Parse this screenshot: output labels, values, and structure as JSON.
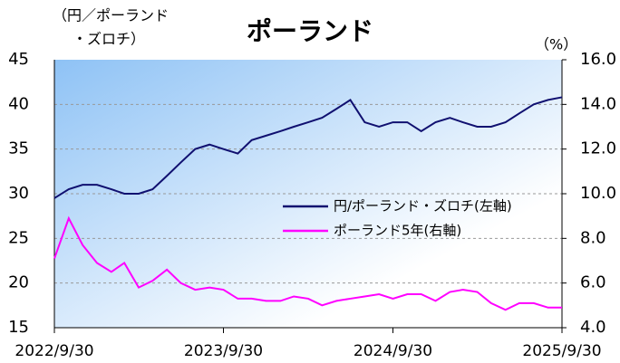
{
  "chart_data": {
    "type": "line",
    "title": "ポーランド",
    "y_label": [
      "（円／ポーランド",
      "・ズロチ）"
    ],
    "y2_label": "（%）",
    "x": [
      "2022/9/30",
      "2022/10/31",
      "2022/11/30",
      "2022/12/31",
      "2023/1/31",
      "2023/2/28",
      "2023/3/31",
      "2023/4/30",
      "2023/5/31",
      "2023/6/30",
      "2023/7/31",
      "2023/8/31",
      "2023/9/30",
      "2023/10/31",
      "2023/11/30",
      "2023/12/31",
      "2024/1/31",
      "2024/2/29",
      "2024/3/31",
      "2024/4/30",
      "2024/5/31",
      "2024/6/30",
      "2024/7/31",
      "2024/8/31",
      "2024/9/30",
      "2024/10/31",
      "2024/11/30",
      "2024/12/31",
      "2025/1/31",
      "2025/2/28",
      "2025/3/31",
      "2025/4/30",
      "2025/5/31",
      "2025/6/30",
      "2025/7/31",
      "2025/8/31",
      "2025/9/30"
    ],
    "series": [
      {
        "name": "円/ポーランド・ズロチ(左軸)",
        "color": "#101070",
        "values": [
          29.5,
          30.5,
          31,
          31,
          30.5,
          30,
          30,
          30.5,
          32,
          33.5,
          35,
          35.5,
          35,
          34.5,
          36,
          36.5,
          37,
          37.5,
          38,
          38.5,
          39.5,
          40.5,
          38,
          37.5,
          38,
          38,
          37,
          38,
          38.5,
          38,
          37.5,
          37.5,
          38,
          39,
          40,
          40.5,
          40.8
        ]
      },
      {
        "name": "ポーランド5年(右軸)",
        "color": "#ff00ff",
        "axis": "y2",
        "values": [
          7.1,
          8.9,
          7.7,
          6.9,
          6.5,
          6.9,
          5.8,
          6.1,
          6.6,
          6.0,
          5.7,
          5.8,
          5.7,
          5.3,
          5.3,
          5.2,
          5.2,
          5.4,
          5.3,
          5.0,
          5.2,
          5.3,
          5.4,
          5.5,
          5.3,
          5.5,
          5.5,
          5.2,
          5.6,
          5.7,
          5.6,
          5.1,
          4.8,
          5.1,
          5.1,
          4.9,
          4.9
        ]
      }
    ],
    "xlim": [
      "2022/9/30",
      "2025/9/30"
    ],
    "xticks": [
      "2022/9/30",
      "2023/9/30",
      "2024/9/30",
      "2025/9/30"
    ],
    "ylim": [
      15,
      45
    ],
    "yticks": [
      15,
      20,
      25,
      30,
      35,
      40,
      45
    ],
    "y2lim": [
      4,
      16
    ],
    "y2ticks": [
      {
        "value": 4,
        "label": "4.0"
      },
      {
        "value": 6,
        "label": "6.0"
      },
      {
        "value": 8,
        "label": "8.0"
      },
      {
        "value": 10,
        "label": "10.0"
      },
      {
        "value": 12,
        "label": "12.0"
      },
      {
        "value": 14,
        "label": "14.0"
      },
      {
        "value": 16,
        "label": "16.0"
      }
    ],
    "grid": true,
    "legend": "right"
  }
}
